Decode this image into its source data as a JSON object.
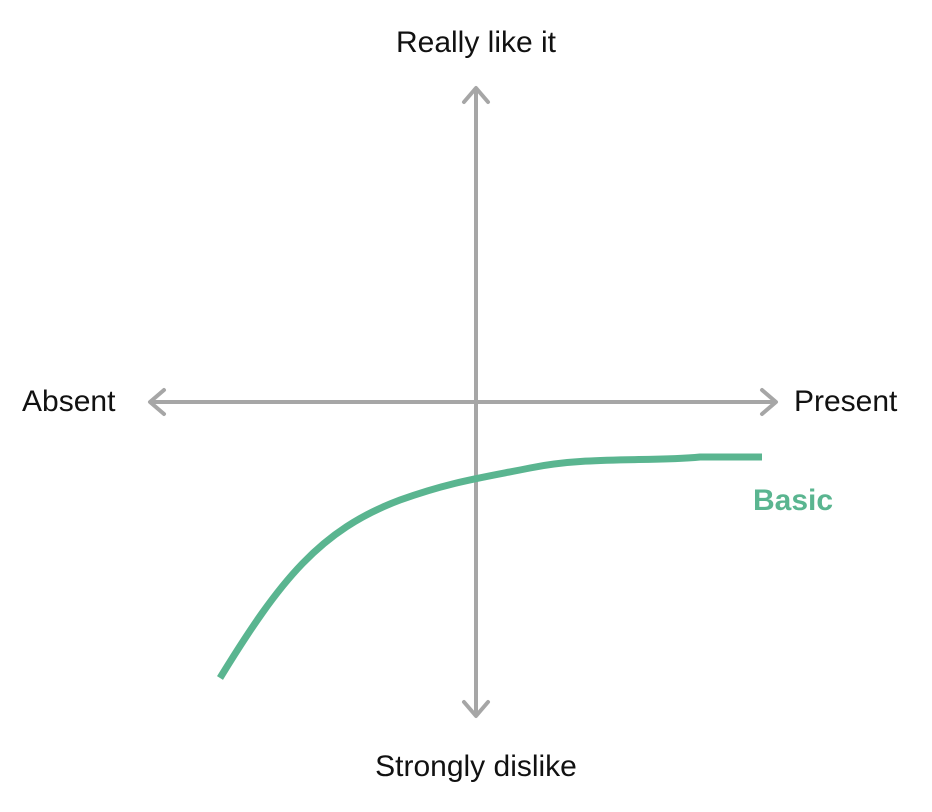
{
  "axes": {
    "top_label": "Really like it",
    "bottom_label": "Strongly dislike",
    "left_label": "Absent",
    "right_label": "Present",
    "axis_color": "#a6a6a6"
  },
  "curve": {
    "label": "Basic",
    "color": "#5ab590"
  }
}
